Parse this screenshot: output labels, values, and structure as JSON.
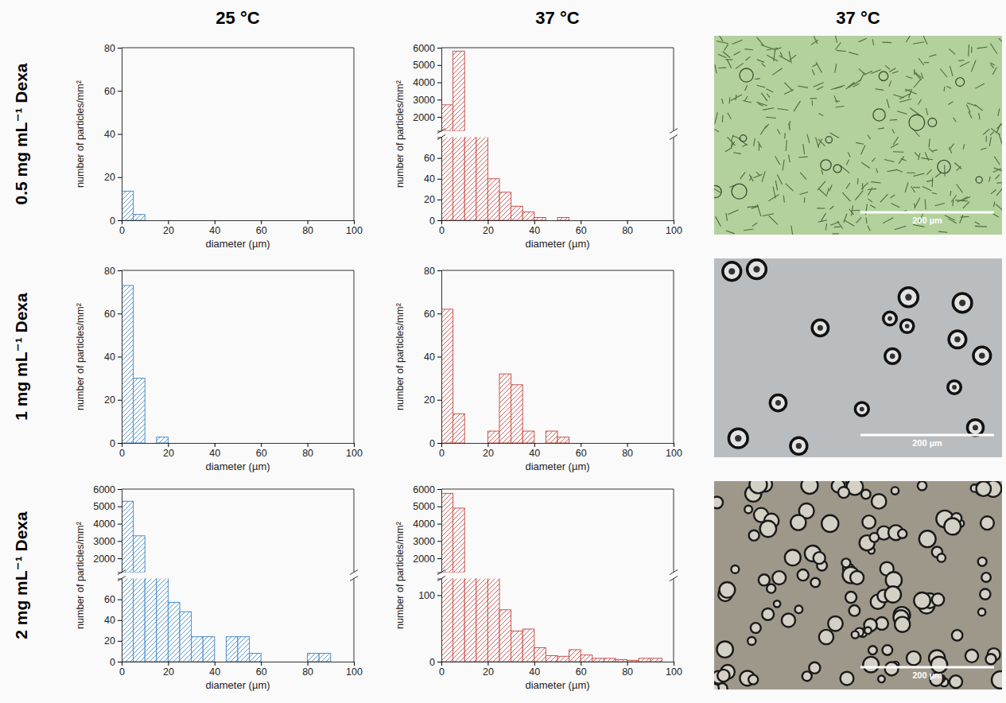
{
  "column_titles": [
    "25 °C",
    "37 °C",
    "37 °C"
  ],
  "row_titles": [
    "0.5 mg mL⁻¹ Dexa",
    "1 mg mL⁻¹ Dexa",
    "2 mg mL⁻¹ Dexa"
  ],
  "images": [
    {
      "color": "#b3d19c",
      "scale_bar": "200 µm"
    },
    {
      "color": "#b9bdbf",
      "scale_bar": "200 µm"
    },
    {
      "color": "#9e988b",
      "scale_bar": "200 µm"
    }
  ],
  "chart_data": [
    {
      "type": "histogram",
      "xlabel": "diameter (µm)",
      "ylabel": "number of particles/mm²",
      "color": "#4a8cc9",
      "bins": [
        0,
        5,
        10,
        15,
        20,
        25,
        30,
        35,
        40,
        45,
        50,
        55,
        60,
        65,
        70,
        75,
        80,
        85,
        90,
        95,
        100
      ],
      "values": [
        13.5,
        2.7,
        0,
        0,
        0,
        0,
        0,
        0,
        0,
        0,
        0,
        0,
        0,
        0,
        0,
        0,
        0,
        0,
        0,
        0
      ],
      "xlim": [
        0,
        100
      ],
      "xticks": [
        0,
        20,
        40,
        60,
        80,
        100
      ],
      "ylim": [
        0,
        80
      ],
      "yticks": [
        0,
        20,
        40,
        60,
        80
      ]
    },
    {
      "type": "histogram",
      "xlabel": "diameter (µm)",
      "ylabel": "number of particles/mm²",
      "color": "#c8504c",
      "bins": [
        0,
        5,
        10,
        15,
        20,
        25,
        30,
        35,
        40,
        45,
        50,
        55,
        60,
        65,
        70,
        75,
        80,
        85,
        90,
        95,
        100
      ],
      "values": [
        2700,
        5800,
        400,
        150,
        40,
        27,
        13.5,
        8,
        2.7,
        0,
        2.7,
        0,
        0,
        0,
        0,
        0,
        0,
        0,
        0,
        0
      ],
      "xlim": [
        0,
        100
      ],
      "xticks": [
        0,
        20,
        40,
        60,
        80,
        100
      ],
      "ylim": [
        0,
        6000
      ],
      "y_break": [
        80,
        1200
      ],
      "yticks": [
        0,
        20,
        40,
        60,
        2000,
        3000,
        4000,
        5000,
        6000
      ]
    },
    {
      "type": "histogram",
      "xlabel": "diameter (µm)",
      "ylabel": "number of particles/mm²",
      "color": "#4a8cc9",
      "bins": [
        0,
        5,
        10,
        15,
        20,
        25,
        30,
        35,
        40,
        45,
        50,
        55,
        60,
        65,
        70,
        75,
        80,
        85,
        90,
        95,
        100
      ],
      "values": [
        73,
        30,
        0,
        2.7,
        0,
        0,
        0,
        0,
        0,
        0,
        0,
        0,
        0,
        0,
        0,
        0,
        0,
        0,
        0,
        0
      ],
      "xlim": [
        0,
        100
      ],
      "xticks": [
        0,
        20,
        40,
        60,
        80,
        100
      ],
      "ylim": [
        0,
        80
      ],
      "yticks": [
        0,
        20,
        40,
        60,
        80
      ]
    },
    {
      "type": "histogram",
      "xlabel": "diameter (µm)",
      "ylabel": "number of particles/mm²",
      "color": "#c8504c",
      "bins": [
        0,
        5,
        10,
        15,
        20,
        25,
        30,
        35,
        40,
        45,
        50,
        55,
        60,
        65,
        70,
        75,
        80,
        85,
        90,
        95,
        100
      ],
      "values": [
        62,
        13.5,
        0,
        0,
        5.5,
        32,
        27,
        5.5,
        0,
        5.5,
        2.7,
        0,
        0,
        0,
        0,
        0,
        0,
        0,
        0,
        0
      ],
      "xlim": [
        0,
        100
      ],
      "xticks": [
        0,
        20,
        40,
        60,
        80,
        100
      ],
      "ylim": [
        0,
        80
      ],
      "yticks": [
        0,
        20,
        40,
        60,
        80
      ]
    },
    {
      "type": "histogram",
      "xlabel": "diameter (µm)",
      "ylabel": "number of particles/mm²",
      "color": "#4a8cc9",
      "bins": [
        0,
        5,
        10,
        15,
        20,
        25,
        30,
        35,
        40,
        45,
        50,
        55,
        60,
        65,
        70,
        75,
        80,
        85,
        90,
        95,
        100
      ],
      "values": [
        5300,
        3300,
        300,
        150,
        57,
        48,
        24,
        24,
        0,
        24,
        24,
        8,
        0,
        0,
        0,
        0,
        8,
        8,
        0,
        0
      ],
      "xlim": [
        0,
        100
      ],
      "xticks": [
        0,
        20,
        40,
        60,
        80,
        100
      ],
      "ylim": [
        0,
        6000
      ],
      "y_break": [
        80,
        1200
      ],
      "yticks": [
        0,
        20,
        40,
        60,
        2000,
        3000,
        4000,
        5000,
        6000
      ]
    },
    {
      "type": "histogram",
      "xlabel": "diameter (µm)",
      "ylabel": "number of particles/mm²",
      "color": "#c8504c",
      "bins": [
        0,
        5,
        10,
        15,
        20,
        25,
        30,
        35,
        40,
        45,
        50,
        55,
        60,
        65,
        70,
        75,
        80,
        85,
        90,
        95,
        100
      ],
      "values": [
        5750,
        4900,
        600,
        400,
        300,
        78,
        46,
        49,
        21,
        9,
        8,
        18,
        10,
        5,
        5,
        3,
        2,
        5,
        5,
        0
      ],
      "xlim": [
        0,
        100
      ],
      "xticks": [
        0,
        20,
        40,
        60,
        80,
        100
      ],
      "ylim": [
        0,
        6000
      ],
      "y_break": [
        125,
        1200
      ],
      "yticks": [
        0,
        100,
        2000,
        3000,
        4000,
        5000,
        6000
      ]
    }
  ]
}
